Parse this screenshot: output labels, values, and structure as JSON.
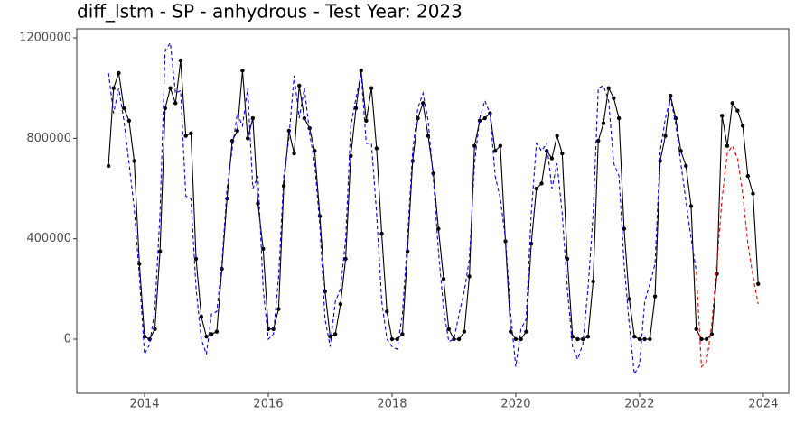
{
  "chart_data": {
    "type": "line",
    "title": "diff_lstm - SP - anhydrous - Test Year: 2023",
    "x": [
      2013.417,
      2013.5,
      2013.583,
      2013.667,
      2013.75,
      2013.833,
      2013.917,
      2014,
      2014.083,
      2014.167,
      2014.25,
      2014.333,
      2014.417,
      2014.5,
      2014.583,
      2014.667,
      2014.75,
      2014.833,
      2014.917,
      2015,
      2015.083,
      2015.167,
      2015.25,
      2015.333,
      2015.417,
      2015.5,
      2015.583,
      2015.667,
      2015.75,
      2015.833,
      2015.917,
      2016,
      2016.083,
      2016.167,
      2016.25,
      2016.333,
      2016.417,
      2016.5,
      2016.583,
      2016.667,
      2016.75,
      2016.833,
      2016.917,
      2017,
      2017.083,
      2017.167,
      2017.25,
      2017.333,
      2017.417,
      2017.5,
      2017.583,
      2017.667,
      2017.75,
      2017.833,
      2017.917,
      2018,
      2018.083,
      2018.167,
      2018.25,
      2018.333,
      2018.417,
      2018.5,
      2018.583,
      2018.667,
      2018.75,
      2018.833,
      2018.917,
      2019,
      2019.083,
      2019.167,
      2019.25,
      2019.333,
      2019.417,
      2019.5,
      2019.583,
      2019.667,
      2019.75,
      2019.833,
      2019.917,
      2020,
      2020.083,
      2020.167,
      2020.25,
      2020.333,
      2020.417,
      2020.5,
      2020.583,
      2020.667,
      2020.75,
      2020.833,
      2020.917,
      2021,
      2021.083,
      2021.167,
      2021.25,
      2021.333,
      2021.417,
      2021.5,
      2021.583,
      2021.667,
      2021.75,
      2021.833,
      2021.917,
      2022,
      2022.083,
      2022.167,
      2022.25,
      2022.333,
      2022.417,
      2022.5,
      2022.583,
      2022.667,
      2022.75,
      2022.833,
      2022.917,
      2023,
      2023.083,
      2023.167,
      2023.25,
      2023.333,
      2023.417,
      2023.5,
      2023.583,
      2023.667,
      2023.75,
      2023.833,
      2023.917
    ],
    "series": [
      {
        "color": "#000000",
        "dash": false,
        "markers": true,
        "values": [
          690000,
          1000000,
          1060000,
          920000,
          870000,
          710000,
          300000,
          10000,
          0,
          40000,
          350000,
          920000,
          1000000,
          940000,
          1110000,
          810000,
          820000,
          320000,
          90000,
          10000,
          20000,
          30000,
          280000,
          560000,
          790000,
          830000,
          1070000,
          800000,
          880000,
          540000,
          360000,
          40000,
          40000,
          120000,
          610000,
          830000,
          740000,
          1010000,
          880000,
          840000,
          750000,
          490000,
          190000,
          10000,
          20000,
          140000,
          320000,
          730000,
          920000,
          1070000,
          870000,
          1000000,
          760000,
          420000,
          110000,
          0,
          0,
          20000,
          350000,
          710000,
          880000,
          940000,
          810000,
          660000,
          440000,
          240000,
          40000,
          0,
          0,
          30000,
          250000,
          770000,
          870000,
          880000,
          900000,
          750000,
          770000,
          390000,
          30000,
          0,
          0,
          30000,
          380000,
          600000,
          620000,
          750000,
          720000,
          810000,
          740000,
          320000,
          10000,
          0,
          0,
          10000,
          230000,
          790000,
          860000,
          1000000,
          960000,
          880000,
          440000,
          160000,
          10000,
          0,
          0,
          0,
          170000,
          710000,
          810000,
          970000,
          880000,
          750000,
          690000,
          530000,
          40000,
          0,
          0,
          20000,
          260000,
          890000,
          770000,
          940000,
          910000,
          850000,
          650000,
          580000,
          220000
        ]
      },
      {
        "color": "#0000ee",
        "dash": true,
        "markers": false,
        "values": [
          1060000,
          900000,
          1000000,
          870000,
          700000,
          520000,
          250000,
          -60000,
          -20000,
          120000,
          500000,
          1150000,
          1180000,
          980000,
          990000,
          570000,
          560000,
          200000,
          0,
          -60000,
          100000,
          110000,
          300000,
          600000,
          760000,
          900000,
          850000,
          1000000,
          600000,
          650000,
          200000,
          0,
          20000,
          250000,
          650000,
          800000,
          1050000,
          880000,
          1000000,
          820000,
          700000,
          450000,
          80000,
          -30000,
          150000,
          200000,
          400000,
          850000,
          960000,
          1060000,
          780000,
          780000,
          500000,
          150000,
          0,
          -30000,
          -40000,
          100000,
          400000,
          750000,
          920000,
          980000,
          870000,
          640000,
          350000,
          120000,
          -10000,
          0,
          100000,
          190000,
          320000,
          700000,
          880000,
          950000,
          900000,
          650000,
          560000,
          400000,
          100000,
          -110000,
          40000,
          80000,
          500000,
          780000,
          750000,
          780000,
          600000,
          700000,
          500000,
          200000,
          -30000,
          -80000,
          -20000,
          200000,
          500000,
          1000000,
          1010000,
          950000,
          700000,
          650000,
          300000,
          60000,
          -140000,
          -100000,
          150000,
          220000,
          300000,
          750000,
          880000,
          960000,
          860000,
          700000,
          550000,
          400000,
          270000,
          null,
          null,
          null,
          null,
          null,
          null,
          null,
          null,
          null,
          null,
          null,
          null
        ]
      },
      {
        "color": "#ee0000",
        "dash": true,
        "markers": false,
        "values": [
          null,
          null,
          null,
          null,
          null,
          null,
          null,
          null,
          null,
          null,
          null,
          null,
          null,
          null,
          null,
          null,
          null,
          null,
          null,
          null,
          null,
          null,
          null,
          null,
          null,
          null,
          null,
          null,
          null,
          null,
          null,
          null,
          null,
          null,
          null,
          null,
          null,
          null,
          null,
          null,
          null,
          null,
          null,
          null,
          null,
          null,
          null,
          null,
          null,
          null,
          null,
          null,
          null,
          null,
          null,
          null,
          null,
          null,
          null,
          null,
          null,
          null,
          null,
          null,
          null,
          null,
          null,
          null,
          null,
          null,
          null,
          null,
          null,
          null,
          null,
          null,
          null,
          null,
          null,
          null,
          null,
          null,
          null,
          null,
          null,
          null,
          null,
          null,
          null,
          null,
          null,
          null,
          null,
          null,
          null,
          null,
          null,
          null,
          null,
          null,
          null,
          null,
          null,
          null,
          null,
          null,
          null,
          null,
          null,
          null,
          null,
          null,
          null,
          null,
          270000,
          -110000,
          -90000,
          60000,
          300000,
          560000,
          740000,
          770000,
          720000,
          580000,
          380000,
          250000,
          140000
        ]
      }
    ],
    "xlim": [
      2012.905,
      2024.41
    ],
    "xticks": [
      2014,
      2016,
      2018,
      2020,
      2022,
      2024
    ],
    "ylim": [
      -215600,
      1236000
    ],
    "yticks": [
      0,
      400000,
      800000,
      1200000
    ]
  }
}
